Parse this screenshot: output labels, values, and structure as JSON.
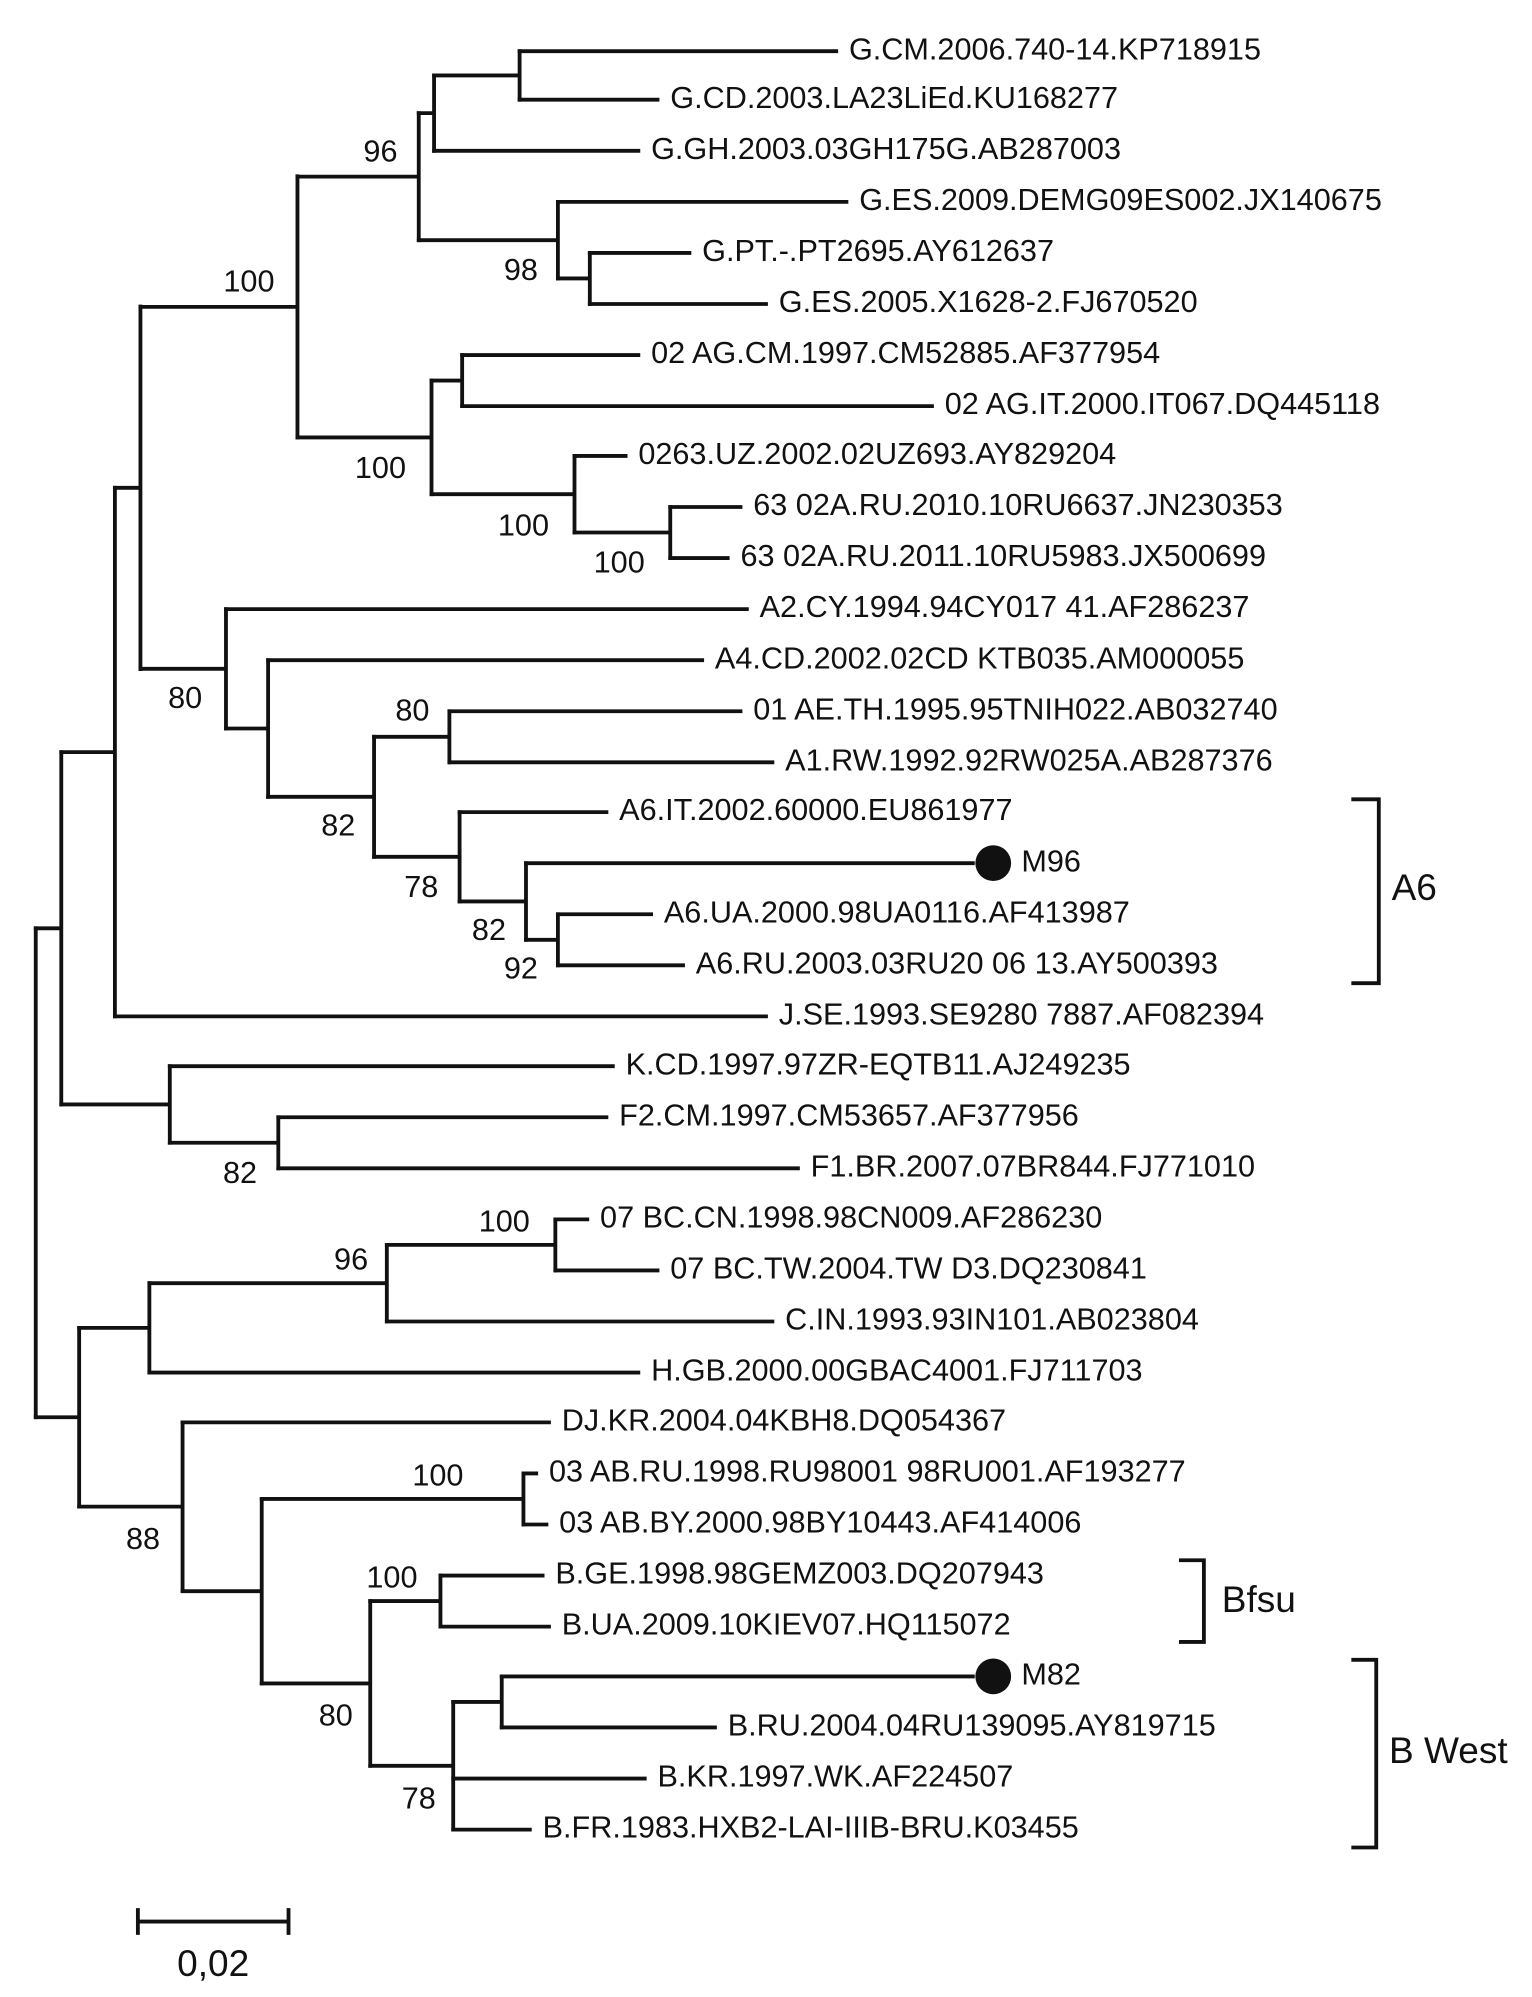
{
  "leaves": [
    "G.CM.2006.740-14.KP718915",
    "G.CD.2003.LA23LiEd.KU168277",
    "G.GH.2003.03GH175G.AB287003",
    "G.ES.2009.DEMG09ES002.JX140675",
    "G.PT.-.PT2695.AY612637",
    "G.ES.2005.X1628-2.FJ670520",
    "02 AG.CM.1997.CM52885.AF377954",
    "02 AG.IT.2000.IT067.DQ445118",
    "0263.UZ.2002.02UZ693.AY829204",
    "63 02A.RU.2010.10RU6637.JN230353",
    "63 02A.RU.2011.10RU5983.JX500699",
    "A2.CY.1994.94CY017 41.AF286237",
    "A4.CD.2002.02CD KTB035.AM000055",
    "01 AE.TH.1995.95TNIH022.AB032740",
    "A1.RW.1992.92RW025A.AB287376",
    "A6.IT.2002.60000.EU861977",
    "M96",
    "A6.UA.2000.98UA0116.AF413987",
    "A6.RU.2003.03RU20 06 13.AY500393",
    "J.SE.1993.SE9280 7887.AF082394",
    "K.CD.1997.97ZR-EQTB11.AJ249235",
    "F2.CM.1997.CM53657.AF377956",
    "F1.BR.2007.07BR844.FJ771010",
    "07 BC.CN.1998.98CN009.AF286230",
    "07 BC.TW.2004.TW D3.DQ230841",
    "C.IN.1993.93IN101.AB023804",
    "H.GB.2000.00GBAC4001.FJ711703",
    "DJ.KR.2004.04KBH8.DQ054367",
    "03 AB.RU.1998.RU98001 98RU001.AF193277",
    "03 AB.BY.2000.98BY10443.AF414006",
    "B.GE.1998.98GEMZ003.DQ207943",
    "B.UA.2009.10KIEV07.HQ115072",
    "M82",
    "B.RU.2004.04RU139095.AY819715",
    "B.KR.1997.WK.AF224507",
    "B.FR.1983.HXB2-LAI-IIIB-BRU.K03455"
  ],
  "bootstrap": [
    96,
    98,
    100,
    100,
    100,
    100,
    80,
    80,
    82,
    78,
    82,
    92,
    82,
    100,
    96,
    100,
    88,
    100,
    80,
    78
  ],
  "clades": [
    "A6",
    "Bfsu",
    "B West"
  ],
  "scale_label": "0,02"
}
